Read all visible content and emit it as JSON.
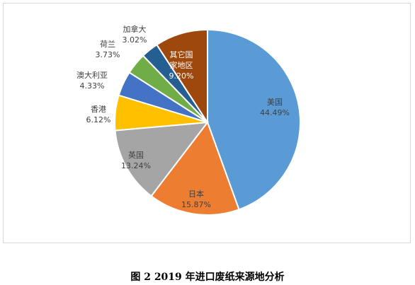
{
  "chart_data": {
    "type": "pie",
    "categories": [
      "美国",
      "日本",
      "英国",
      "香港",
      "澳大利亚",
      "荷兰",
      "加拿大",
      "其它国家地区"
    ],
    "values": [
      44.49,
      15.87,
      13.24,
      6.12,
      4.33,
      3.73,
      3.02,
      9.2
    ],
    "value_labels": [
      "44.49%",
      "15.87%",
      "13.24%",
      "6.12%",
      "4.33%",
      "3.73%",
      "3.02%",
      "9.20%"
    ],
    "colors": [
      "#5b9bd5",
      "#ed7d31",
      "#a5a5a5",
      "#ffc000",
      "#4472c4",
      "#70ad47",
      "#255e91",
      "#9e480e"
    ],
    "label_colors": [
      "#404040",
      "#404040",
      "#404040",
      "#404040",
      "#404040",
      "#404040",
      "#404040",
      "#ffffff"
    ],
    "start_angle": "12 o'clock",
    "direction": "clockwise",
    "legend": "none",
    "title": ""
  },
  "caption": "图 2 2019 年进口废纸来源地分析",
  "slice_labels": [
    {
      "name": "美国",
      "value": "44.49%"
    },
    {
      "name": "日本",
      "value": "15.87%"
    },
    {
      "name": "英国",
      "value": "13.24%"
    },
    {
      "name": "香港",
      "value": "6.12%"
    },
    {
      "name": "澳大利亚",
      "value": "4.33%"
    },
    {
      "name": "荷兰",
      "value": "3.73%"
    },
    {
      "name": "加拿大",
      "value": "3.02%"
    },
    {
      "name": "其它国\n家地区",
      "value": "9.20%"
    }
  ]
}
